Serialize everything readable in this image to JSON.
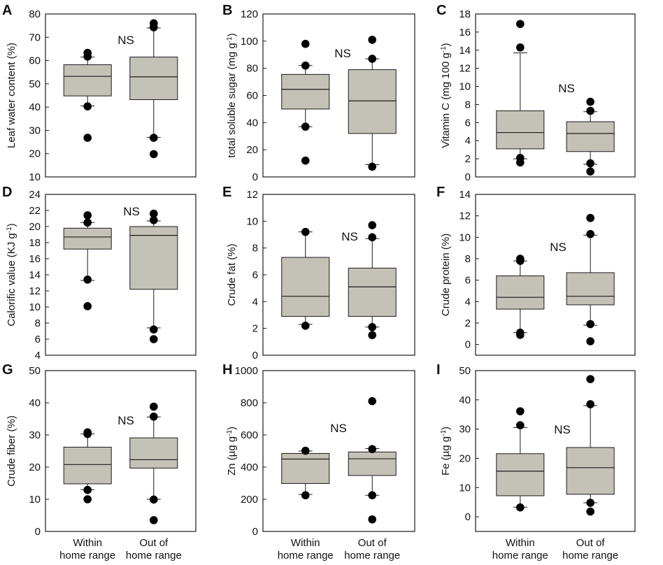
{
  "figure": {
    "categories": [
      [
        "Within",
        "home range"
      ],
      [
        "Out of",
        "home range"
      ]
    ],
    "significance_label": "NS"
  },
  "colors": {
    "box_fill": "#c4c2b6",
    "box_stroke": "#1a1a1a",
    "point": "#000000",
    "frame": "#1a1a1a"
  },
  "chart_data": [
    {
      "panel": "A",
      "type": "box",
      "ylabel": "Leaf water content (%)",
      "ylim": [
        10,
        80
      ],
      "yticks": [
        10,
        20,
        30,
        40,
        50,
        60,
        70,
        80
      ],
      "ns_label": "NS",
      "boxes": [
        {
          "category": "Within home range",
          "whisker_low": 40.5,
          "q1": 44.8,
          "median": 53.2,
          "q3": 58.2,
          "whisker_high": 61.5,
          "outliers": [
            26.8,
            40.3,
            61.7,
            63.3
          ]
        },
        {
          "category": "Out of home range",
          "whisker_low": 27,
          "q1": 43.2,
          "median": 53,
          "q3": 61.5,
          "whisker_high": 74,
          "outliers": [
            19.8,
            26.8,
            74.3,
            76
          ]
        }
      ]
    },
    {
      "panel": "B",
      "type": "box",
      "ylabel": "total soluble sugar (mg g^-1)",
      "ylim": [
        0,
        120
      ],
      "yticks": [
        0,
        20,
        40,
        60,
        80,
        100,
        120
      ],
      "ns_label": "NS",
      "boxes": [
        {
          "category": "Within home range",
          "whisker_low": 37,
          "q1": 50,
          "median": 64.5,
          "q3": 75.5,
          "whisker_high": 82,
          "outliers": [
            12,
            37,
            82,
            98
          ]
        },
        {
          "category": "Out of home range",
          "whisker_low": 9,
          "q1": 32,
          "median": 56,
          "q3": 79,
          "whisker_high": 87,
          "outliers": [
            7.5,
            87,
            101
          ]
        }
      ]
    },
    {
      "panel": "C",
      "type": "box",
      "ylabel": "Vitamin C (mg 100 g^-1)",
      "ylim": [
        0,
        18
      ],
      "yticks": [
        0,
        2,
        4,
        6,
        8,
        10,
        12,
        14,
        16,
        18
      ],
      "ns_label": "NS",
      "boxes": [
        {
          "category": "Within home range",
          "whisker_low": 2,
          "q1": 3.1,
          "median": 4.9,
          "q3": 7.3,
          "whisker_high": 13.7,
          "outliers": [
            1.6,
            2.1,
            14.3,
            16.9
          ]
        },
        {
          "category": "Out of home range",
          "whisker_low": 1.4,
          "q1": 2.8,
          "median": 4.8,
          "q3": 6.1,
          "whisker_high": 7.2,
          "outliers": [
            0.6,
            1.5,
            7.3,
            8.3
          ]
        }
      ]
    },
    {
      "panel": "D",
      "type": "box",
      "ylabel": "Calorific value (KJ g^-1)",
      "ylim": [
        4,
        24
      ],
      "yticks": [
        4,
        6,
        8,
        10,
        12,
        14,
        16,
        18,
        20,
        22,
        24
      ],
      "ns_label": "NS",
      "boxes": [
        {
          "category": "Within home range",
          "whisker_low": 13.3,
          "q1": 17.2,
          "median": 18.7,
          "q3": 19.8,
          "whisker_high": 20.5,
          "outliers": [
            10.1,
            13.4,
            20.5,
            21.4
          ]
        },
        {
          "category": "Out of home range",
          "whisker_low": 7.4,
          "q1": 12.2,
          "median": 18.9,
          "q3": 20,
          "whisker_high": 20.7,
          "outliers": [
            6,
            7.2,
            20.8,
            21.6
          ]
        }
      ]
    },
    {
      "panel": "E",
      "type": "box",
      "ylabel": "Crude fat (%)",
      "ylim": [
        0,
        12
      ],
      "yticks": [
        0,
        2,
        4,
        6,
        8,
        10,
        12
      ],
      "ns_label": "NS",
      "boxes": [
        {
          "category": "Within home range",
          "whisker_low": 2.3,
          "q1": 2.9,
          "median": 4.4,
          "q3": 7.3,
          "whisker_high": 9.2,
          "outliers": [
            2.2,
            9.2
          ]
        },
        {
          "category": "Out of home range",
          "whisker_low": 2.1,
          "q1": 2.9,
          "median": 5.1,
          "q3": 6.5,
          "whisker_high": 8.7,
          "outliers": [
            1.5,
            2.1,
            8.8,
            9.7
          ]
        }
      ]
    },
    {
      "panel": "F",
      "type": "box",
      "ylabel": "Crude protein (%)",
      "ylim": [
        -1,
        14
      ],
      "yticks": [
        0,
        2,
        4,
        6,
        8,
        10,
        12,
        14
      ],
      "ns_label": "NS",
      "boxes": [
        {
          "category": "Within home range",
          "whisker_low": 1.1,
          "q1": 3.3,
          "median": 4.4,
          "q3": 6.4,
          "whisker_high": 7.8,
          "outliers": [
            0.9,
            1.1,
            7.8,
            8
          ]
        },
        {
          "category": "Out of home range",
          "whisker_low": 1.8,
          "q1": 3.7,
          "median": 4.5,
          "q3": 6.7,
          "whisker_high": 10.2,
          "outliers": [
            0.3,
            1.9,
            10.3,
            11.8
          ]
        }
      ]
    },
    {
      "panel": "G",
      "type": "box",
      "ylabel": "Crude fiber (%)",
      "ylim": [
        0,
        50
      ],
      "yticks": [
        0,
        10,
        20,
        30,
        40,
        50
      ],
      "ns_label": "NS",
      "boxes": [
        {
          "category": "Within home range",
          "whisker_low": 13,
          "q1": 14.8,
          "median": 20.8,
          "q3": 26.2,
          "whisker_high": 30.3,
          "outliers": [
            10,
            12.9,
            30.3,
            30.8
          ]
        },
        {
          "category": "Out of home range",
          "whisker_low": 10,
          "q1": 19.7,
          "median": 22.3,
          "q3": 29.1,
          "whisker_high": 35.6,
          "outliers": [
            3.5,
            9.9,
            35.7,
            38.8
          ]
        }
      ]
    },
    {
      "panel": "H",
      "type": "box",
      "ylabel": "Zn (µg g^-1)",
      "ylim": [
        0,
        1000
      ],
      "yticks": [
        0,
        200,
        400,
        600,
        800,
        1000
      ],
      "ns_label": "NS",
      "boxes": [
        {
          "category": "Within home range",
          "whisker_low": 230,
          "q1": 298,
          "median": 450,
          "q3": 485,
          "whisker_high": 500,
          "outliers": [
            225,
            502
          ]
        },
        {
          "category": "Out of home range",
          "whisker_low": 225,
          "q1": 348,
          "median": 452,
          "q3": 494,
          "whisker_high": 515,
          "outliers": [
            75,
            225,
            512,
            810
          ]
        }
      ]
    },
    {
      "panel": "I",
      "type": "box",
      "ylabel": "Fe (µg g^-1)",
      "ylim": [
        -5,
        50
      ],
      "yticks": [
        0,
        10,
        20,
        30,
        40,
        50
      ],
      "ns_label": "NS",
      "boxes": [
        {
          "category": "Within home range",
          "whisker_low": 3.3,
          "q1": 7.2,
          "median": 15.6,
          "q3": 21.6,
          "whisker_high": 30.5,
          "outliers": [
            3.2,
            31.3,
            36.1
          ]
        },
        {
          "category": "Out of home range",
          "whisker_low": 4.8,
          "q1": 7.7,
          "median": 16.8,
          "q3": 23.7,
          "whisker_high": 38,
          "outliers": [
            1.8,
            4.8,
            38.5,
            47.1
          ]
        }
      ]
    }
  ]
}
